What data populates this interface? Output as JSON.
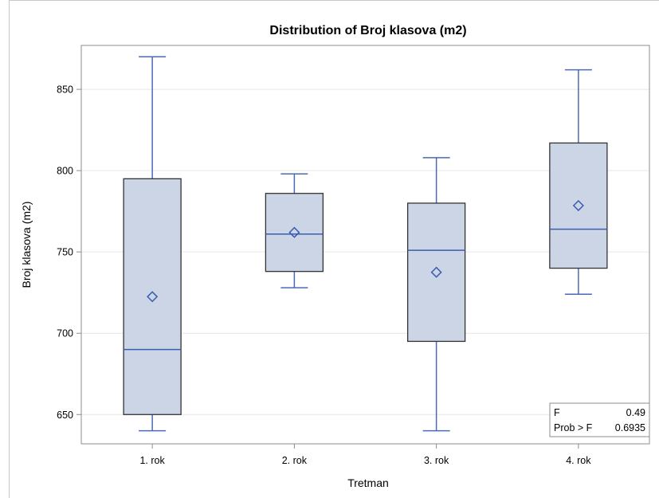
{
  "chart_data": {
    "type": "box",
    "title": "Distribution of Broj klasova (m2)",
    "xlabel": "Tretman",
    "ylabel": "Broj klasova (m2)",
    "ylim": [
      632,
      877
    ],
    "yticks": [
      650,
      700,
      750,
      800,
      850
    ],
    "grid": true,
    "categories": [
      "1. rok",
      "2. rok",
      "3. rok",
      "4. rok"
    ],
    "boxes": [
      {
        "category": "1. rok",
        "min": 640,
        "q1": 650,
        "median": 690,
        "q3": 795,
        "max": 870,
        "mean": 722.5
      },
      {
        "category": "2. rok",
        "min": 728,
        "q1": 738,
        "median": 761,
        "q3": 786,
        "max": 798,
        "mean": 762
      },
      {
        "category": "3. rok",
        "min": 640,
        "q1": 695,
        "median": 751,
        "q3": 780,
        "max": 808,
        "mean": 737.5
      },
      {
        "category": "4. rok",
        "min": 724,
        "q1": 740,
        "median": 764,
        "q3": 817,
        "max": 862,
        "mean": 778.5
      }
    ],
    "stats": {
      "f_label": "F",
      "f_value": "0.49",
      "p_label": "Prob > F",
      "p_value": "0.6935"
    },
    "colors": {
      "box_fill": "#cbd5e6",
      "box_edge": "#333333",
      "whisker": "#4a6ab8",
      "median": "#3b5cb0",
      "mean_marker": "#3b5cb0",
      "grid": "#e6e6e6",
      "frame": "#8c8c8c"
    }
  }
}
